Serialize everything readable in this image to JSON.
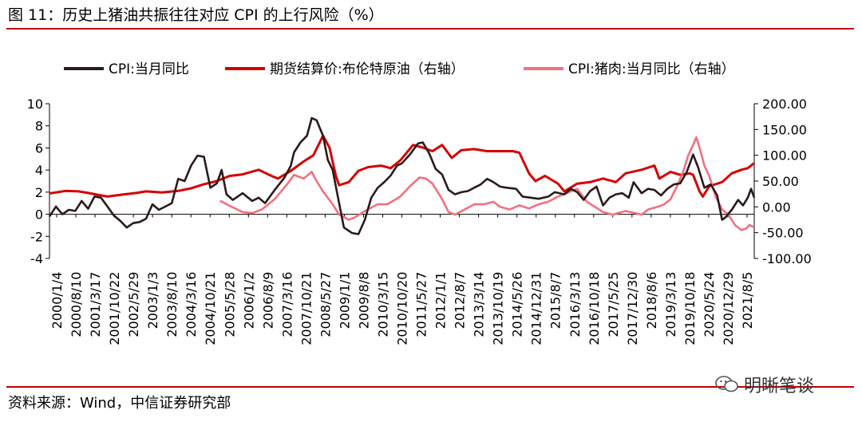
{
  "title": "图 11：历史上猪油共振往往对应 CPI 的上行风险（%）",
  "source": "资料来源：Wind，中信证券研究部",
  "watermark": "明晰笔谈",
  "chart_data": {
    "type": "line",
    "title": "历史上猪油共振往往对应 CPI 的上行风险（%）",
    "x_tick_labels": [
      "2000/1/4",
      "2000/8/10",
      "2001/3/17",
      "2001/10/22",
      "2002/5/29",
      "2003/1/3",
      "2003/8/10",
      "2004/3/16",
      "2004/10/21",
      "2005/5/28",
      "2006/1/2",
      "2006/8/9",
      "2007/3/16",
      "2007/10/21",
      "2008/5/27",
      "2009/1/1",
      "2009/8/8",
      "2010/3/15",
      "2010/10/20",
      "2011/5/27",
      "2012/1/1",
      "2012/8/7",
      "2013/3/14",
      "2013/10/19",
      "2014/5/26",
      "2014/12/31",
      "2015/8/7",
      "2016/3/13",
      "2016/10/18",
      "2017/5/25",
      "2017/12/30",
      "2018/8/6",
      "2019/3/13",
      "2019/10/18",
      "2020/5/24",
      "2020/12/29",
      "2021/8/5"
    ],
    "x_range": [
      2000.0,
      2021.9
    ],
    "y_left": {
      "min": -4,
      "max": 10,
      "ticks": [
        -4,
        -2,
        0,
        2,
        4,
        6,
        8,
        10
      ]
    },
    "y_right": {
      "min": -100,
      "max": 200,
      "ticks": [
        "-100.00",
        "-50.00",
        "0.00",
        "50.00",
        "100.00",
        "150.00",
        "200.00"
      ],
      "tick_values": [
        -100,
        -50,
        0,
        50,
        100,
        150,
        200
      ]
    },
    "series": [
      {
        "name": "CPI:当月同比",
        "axis": "left",
        "color": "#2b1a1a",
        "points": [
          [
            2000.0,
            -0.2
          ],
          [
            2000.2,
            0.7
          ],
          [
            2000.4,
            0.0
          ],
          [
            2000.6,
            0.4
          ],
          [
            2000.8,
            0.3
          ],
          [
            2001.0,
            1.2
          ],
          [
            2001.2,
            0.5
          ],
          [
            2001.4,
            1.6
          ],
          [
            2001.6,
            1.5
          ],
          [
            2001.8,
            0.7
          ],
          [
            2002.0,
            -0.1
          ],
          [
            2002.2,
            -0.6
          ],
          [
            2002.4,
            -1.2
          ],
          [
            2002.6,
            -0.8
          ],
          [
            2002.8,
            -0.7
          ],
          [
            2003.0,
            -0.4
          ],
          [
            2003.2,
            0.9
          ],
          [
            2003.4,
            0.4
          ],
          [
            2003.6,
            0.7
          ],
          [
            2003.8,
            1.0
          ],
          [
            2004.0,
            3.2
          ],
          [
            2004.2,
            3.0
          ],
          [
            2004.4,
            4.4
          ],
          [
            2004.6,
            5.3
          ],
          [
            2004.8,
            5.2
          ],
          [
            2005.0,
            2.4
          ],
          [
            2005.2,
            2.8
          ],
          [
            2005.35,
            4.0
          ],
          [
            2005.5,
            1.8
          ],
          [
            2005.7,
            1.3
          ],
          [
            2006.0,
            1.9
          ],
          [
            2006.3,
            1.2
          ],
          [
            2006.5,
            1.5
          ],
          [
            2006.7,
            1.0
          ],
          [
            2007.0,
            2.2
          ],
          [
            2007.3,
            3.3
          ],
          [
            2007.5,
            4.4
          ],
          [
            2007.6,
            5.6
          ],
          [
            2007.8,
            6.5
          ],
          [
            2008.0,
            7.1
          ],
          [
            2008.15,
            8.7
          ],
          [
            2008.3,
            8.5
          ],
          [
            2008.5,
            7.1
          ],
          [
            2008.65,
            4.9
          ],
          [
            2008.8,
            4.0
          ],
          [
            2009.0,
            1.0
          ],
          [
            2009.15,
            -1.2
          ],
          [
            2009.4,
            -1.7
          ],
          [
            2009.6,
            -1.8
          ],
          [
            2009.8,
            -0.5
          ],
          [
            2010.0,
            1.5
          ],
          [
            2010.2,
            2.4
          ],
          [
            2010.4,
            2.9
          ],
          [
            2010.6,
            3.5
          ],
          [
            2010.8,
            4.4
          ],
          [
            2010.95,
            4.6
          ],
          [
            2011.2,
            5.4
          ],
          [
            2011.45,
            6.4
          ],
          [
            2011.6,
            6.5
          ],
          [
            2011.8,
            5.5
          ],
          [
            2012.0,
            4.1
          ],
          [
            2012.2,
            3.6
          ],
          [
            2012.4,
            2.2
          ],
          [
            2012.6,
            1.8
          ],
          [
            2012.8,
            2.0
          ],
          [
            2013.0,
            2.1
          ],
          [
            2013.2,
            2.4
          ],
          [
            2013.4,
            2.7
          ],
          [
            2013.6,
            3.2
          ],
          [
            2013.8,
            2.9
          ],
          [
            2014.0,
            2.5
          ],
          [
            2014.2,
            2.4
          ],
          [
            2014.5,
            2.3
          ],
          [
            2014.7,
            1.6
          ],
          [
            2014.95,
            1.5
          ],
          [
            2015.2,
            1.4
          ],
          [
            2015.5,
            1.6
          ],
          [
            2015.7,
            2.0
          ],
          [
            2016.0,
            1.8
          ],
          [
            2016.2,
            2.3
          ],
          [
            2016.4,
            2.0
          ],
          [
            2016.6,
            1.3
          ],
          [
            2016.8,
            2.1
          ],
          [
            2017.0,
            2.5
          ],
          [
            2017.2,
            0.8
          ],
          [
            2017.4,
            1.5
          ],
          [
            2017.6,
            1.8
          ],
          [
            2017.8,
            1.9
          ],
          [
            2018.0,
            1.5
          ],
          [
            2018.15,
            2.9
          ],
          [
            2018.4,
            1.9
          ],
          [
            2018.6,
            2.3
          ],
          [
            2018.8,
            2.2
          ],
          [
            2019.0,
            1.7
          ],
          [
            2019.2,
            2.3
          ],
          [
            2019.4,
            2.7
          ],
          [
            2019.6,
            2.8
          ],
          [
            2019.8,
            3.8
          ],
          [
            2020.0,
            5.4
          ],
          [
            2020.15,
            4.3
          ],
          [
            2020.35,
            2.4
          ],
          [
            2020.55,
            2.7
          ],
          [
            2020.75,
            1.7
          ],
          [
            2020.9,
            -0.5
          ],
          [
            2021.0,
            -0.3
          ],
          [
            2021.2,
            0.4
          ],
          [
            2021.4,
            1.3
          ],
          [
            2021.55,
            0.8
          ],
          [
            2021.7,
            1.5
          ],
          [
            2021.8,
            2.3
          ],
          [
            2021.9,
            1.5
          ]
        ]
      },
      {
        "name": "期货结算价:布伦特原油（右轴）",
        "axis": "right",
        "color": "#d40000",
        "points": [
          [
            2000.0,
            26
          ],
          [
            2000.5,
            31
          ],
          [
            2000.9,
            30
          ],
          [
            2001.2,
            27
          ],
          [
            2001.8,
            20
          ],
          [
            2002.3,
            24
          ],
          [
            2002.7,
            27
          ],
          [
            2003.0,
            30
          ],
          [
            2003.5,
            28
          ],
          [
            2004.0,
            31
          ],
          [
            2004.4,
            36
          ],
          [
            2004.8,
            44
          ],
          [
            2005.2,
            50
          ],
          [
            2005.6,
            60
          ],
          [
            2006.0,
            63
          ],
          [
            2006.5,
            72
          ],
          [
            2006.9,
            60
          ],
          [
            2007.1,
            55
          ],
          [
            2007.5,
            70
          ],
          [
            2007.9,
            88
          ],
          [
            2008.2,
            100
          ],
          [
            2008.5,
            138
          ],
          [
            2008.7,
            115
          ],
          [
            2008.9,
            60
          ],
          [
            2009.0,
            42
          ],
          [
            2009.3,
            48
          ],
          [
            2009.6,
            70
          ],
          [
            2009.9,
            77
          ],
          [
            2010.3,
            80
          ],
          [
            2010.6,
            75
          ],
          [
            2010.9,
            90
          ],
          [
            2011.3,
            120
          ],
          [
            2011.6,
            115
          ],
          [
            2011.9,
            108
          ],
          [
            2012.2,
            120
          ],
          [
            2012.5,
            95
          ],
          [
            2012.8,
            110
          ],
          [
            2013.2,
            112
          ],
          [
            2013.6,
            108
          ],
          [
            2014.0,
            108
          ],
          [
            2014.4,
            108
          ],
          [
            2014.6,
            105
          ],
          [
            2014.9,
            65
          ],
          [
            2015.1,
            50
          ],
          [
            2015.4,
            60
          ],
          [
            2015.8,
            45
          ],
          [
            2016.0,
            30
          ],
          [
            2016.4,
            45
          ],
          [
            2016.8,
            48
          ],
          [
            2017.2,
            55
          ],
          [
            2017.6,
            48
          ],
          [
            2017.9,
            65
          ],
          [
            2018.4,
            72
          ],
          [
            2018.8,
            80
          ],
          [
            2018.95,
            55
          ],
          [
            2019.3,
            68
          ],
          [
            2019.6,
            62
          ],
          [
            2019.9,
            65
          ],
          [
            2020.0,
            62
          ],
          [
            2020.2,
            30
          ],
          [
            2020.3,
            20
          ],
          [
            2020.5,
            40
          ],
          [
            2020.9,
            48
          ],
          [
            2021.2,
            65
          ],
          [
            2021.5,
            72
          ],
          [
            2021.7,
            75
          ],
          [
            2021.8,
            80
          ],
          [
            2021.9,
            85
          ]
        ]
      },
      {
        "name": "CPI:猪肉:当月同比（右轴）",
        "axis": "right",
        "color": "#f2707f",
        "points": [
          [
            2005.3,
            12
          ],
          [
            2005.6,
            2
          ],
          [
            2006.0,
            -10
          ],
          [
            2006.3,
            -12
          ],
          [
            2006.6,
            -5
          ],
          [
            2007.0,
            15
          ],
          [
            2007.4,
            45
          ],
          [
            2007.6,
            62
          ],
          [
            2007.9,
            55
          ],
          [
            2008.15,
            68
          ],
          [
            2008.3,
            50
          ],
          [
            2008.5,
            30
          ],
          [
            2008.8,
            5
          ],
          [
            2009.0,
            -15
          ],
          [
            2009.3,
            -25
          ],
          [
            2009.5,
            -20
          ],
          [
            2009.8,
            -8
          ],
          [
            2010.2,
            5
          ],
          [
            2010.5,
            5
          ],
          [
            2010.9,
            20
          ],
          [
            2011.2,
            40
          ],
          [
            2011.5,
            57
          ],
          [
            2011.7,
            55
          ],
          [
            2011.9,
            45
          ],
          [
            2012.2,
            15
          ],
          [
            2012.4,
            -10
          ],
          [
            2012.6,
            -15
          ],
          [
            2012.9,
            -5
          ],
          [
            2013.2,
            5
          ],
          [
            2013.5,
            5
          ],
          [
            2013.8,
            10
          ],
          [
            2014.0,
            0
          ],
          [
            2014.3,
            -5
          ],
          [
            2014.6,
            3
          ],
          [
            2014.9,
            -3
          ],
          [
            2015.2,
            5
          ],
          [
            2015.5,
            10
          ],
          [
            2015.8,
            20
          ],
          [
            2016.2,
            30
          ],
          [
            2016.4,
            35
          ],
          [
            2016.7,
            10
          ],
          [
            2016.95,
            0
          ],
          [
            2017.2,
            -10
          ],
          [
            2017.5,
            -15
          ],
          [
            2017.9,
            -8
          ],
          [
            2018.2,
            -12
          ],
          [
            2018.4,
            -15
          ],
          [
            2018.6,
            -5
          ],
          [
            2018.9,
            0
          ],
          [
            2019.1,
            5
          ],
          [
            2019.3,
            15
          ],
          [
            2019.5,
            40
          ],
          [
            2019.7,
            70
          ],
          [
            2019.85,
            100
          ],
          [
            2020.0,
            120
          ],
          [
            2020.1,
            135
          ],
          [
            2020.2,
            115
          ],
          [
            2020.35,
            80
          ],
          [
            2020.5,
            60
          ],
          [
            2020.7,
            20
          ],
          [
            2020.9,
            -5
          ],
          [
            2021.1,
            -15
          ],
          [
            2021.3,
            -35
          ],
          [
            2021.5,
            -45
          ],
          [
            2021.65,
            -42
          ],
          [
            2021.75,
            -35
          ],
          [
            2021.9,
            -40
          ]
        ]
      }
    ]
  }
}
